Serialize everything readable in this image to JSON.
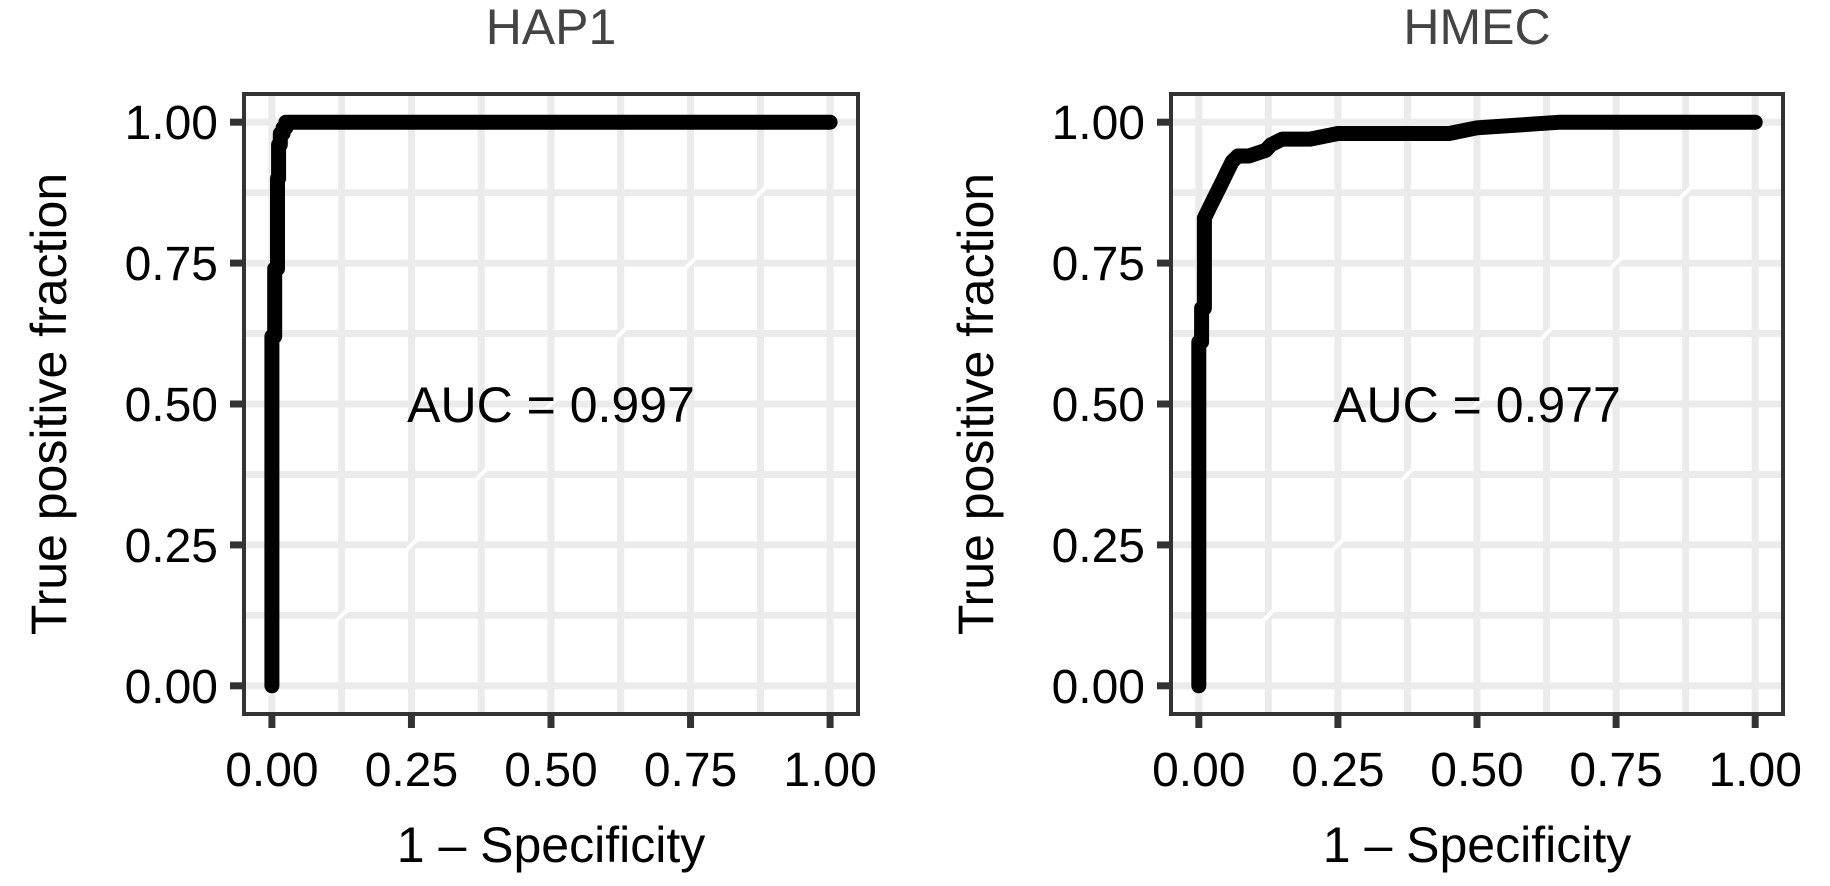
{
  "chart_data": [
    {
      "type": "line",
      "title": "HAP1",
      "xlabel": "1 – Specificity",
      "ylabel": "True positive fraction",
      "annotation": "AUC = 0.997",
      "xlim": [
        -0.05,
        1.05
      ],
      "ylim": [
        -0.05,
        1.05
      ],
      "grid": true,
      "x_ticks": [
        "0.00",
        "0.25",
        "0.50",
        "0.75",
        "1.00"
      ],
      "y_ticks": [
        "0.00",
        "0.25",
        "0.50",
        "0.75",
        "1.00"
      ],
      "x_tick_values": [
        0,
        0.25,
        0.5,
        0.75,
        1.0
      ],
      "y_tick_values": [
        0,
        0.25,
        0.5,
        0.75,
        1.0
      ],
      "series": [
        {
          "x": [
            0,
            0,
            0.005,
            0.005,
            0.01,
            0.01,
            0.012,
            0.012,
            0.015,
            0.015,
            0.02,
            0.02,
            0.025,
            0.025,
            0.04,
            0.04,
            0.07,
            1.0
          ],
          "y": [
            0,
            0.62,
            0.62,
            0.74,
            0.74,
            0.9,
            0.9,
            0.96,
            0.96,
            0.98,
            0.98,
            0.99,
            0.99,
            1.0,
            1.0,
            1.0,
            1.0,
            1.0
          ]
        }
      ]
    },
    {
      "type": "line",
      "title": "HMEC",
      "xlabel": "1 – Specificity",
      "ylabel": "True positive fraction",
      "annotation": "AUC = 0.977",
      "xlim": [
        -0.05,
        1.05
      ],
      "ylim": [
        -0.05,
        1.05
      ],
      "grid": true,
      "x_ticks": [
        "0.00",
        "0.25",
        "0.50",
        "0.75",
        "1.00"
      ],
      "y_ticks": [
        "0.00",
        "0.25",
        "0.50",
        "0.75",
        "1.00"
      ],
      "x_tick_values": [
        0,
        0.25,
        0.5,
        0.75,
        1.0
      ],
      "y_tick_values": [
        0,
        0.25,
        0.5,
        0.75,
        1.0
      ],
      "series": [
        {
          "x": [
            0,
            0,
            0.005,
            0.005,
            0.01,
            0.01,
            0.015,
            0.02,
            0.025,
            0.03,
            0.035,
            0.04,
            0.045,
            0.05,
            0.06,
            0.07,
            0.08,
            0.09,
            0.12,
            0.13,
            0.15,
            0.2,
            0.25,
            0.3,
            0.45,
            0.5,
            0.65,
            1.0
          ],
          "y": [
            0,
            0.61,
            0.61,
            0.67,
            0.67,
            0.83,
            0.84,
            0.85,
            0.86,
            0.87,
            0.88,
            0.89,
            0.9,
            0.91,
            0.93,
            0.94,
            0.94,
            0.94,
            0.95,
            0.96,
            0.97,
            0.97,
            0.98,
            0.98,
            0.98,
            0.99,
            1.0,
            1.0
          ]
        }
      ]
    }
  ]
}
